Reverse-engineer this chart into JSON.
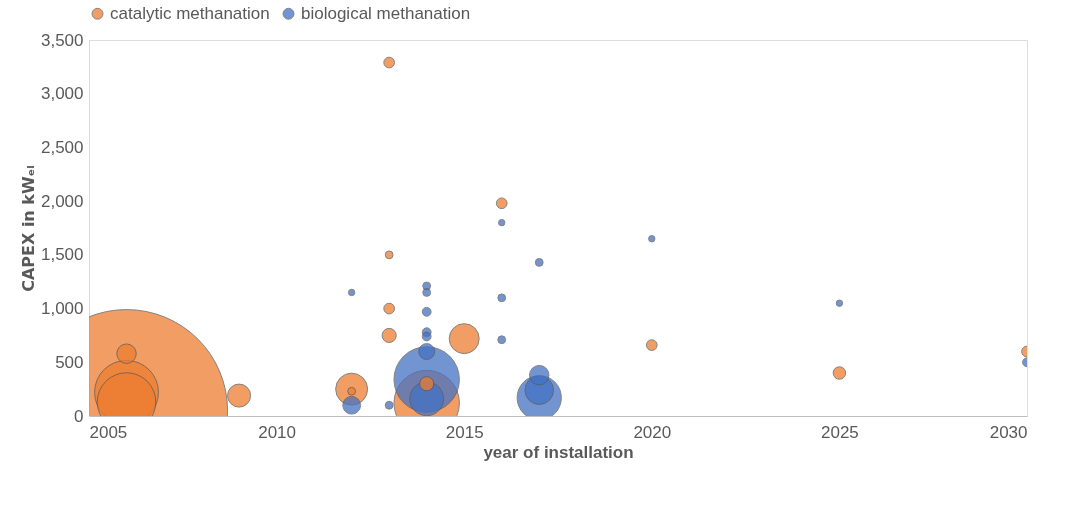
{
  "chart_data": {
    "type": "bubble",
    "xlabel": "year of installation",
    "ylabel": "CAPEX in kWₑₗ",
    "xlim": [
      2005,
      2030
    ],
    "xticks": [
      2005,
      2010,
      2015,
      2020,
      2025,
      2030
    ],
    "ylim": [
      0,
      3500
    ],
    "yticks": [
      0,
      {
        "value": 500,
        "label": "500"
      },
      {
        "value": 1000,
        "label": "1,000"
      },
      {
        "value": 1500,
        "label": "1,500"
      },
      {
        "value": 2000,
        "label": "2,000"
      },
      {
        "value": 2500,
        "label": "2,500"
      },
      {
        "value": 3000,
        "label": "3,000"
      },
      {
        "value": 3500,
        "label": "3,500"
      }
    ],
    "grid": false,
    "legend": "top",
    "series": [
      {
        "name": "catalytic methanation",
        "color": "#ed7d31",
        "x": [
          2006,
          2006,
          2006,
          2006,
          2009,
          2012,
          2012,
          2013,
          2013,
          2013,
          2013,
          2014,
          2014,
          2015,
          2016,
          2020,
          2025,
          2030
        ],
        "values": [
          50,
          580,
          220,
          130,
          190,
          250,
          230,
          3290,
          1500,
          1000,
          750,
          120,
          300,
          720,
          1980,
          660,
          400,
          600
        ],
        "sizes": [
          1,
          0.0093,
          0.1,
          0.084,
          0.013,
          0.025,
          0.0015,
          0.0028,
          0.0015,
          0.0028,
          0.0049,
          0.105,
          0.0049,
          0.022,
          0.0028,
          0.0028,
          0.0038,
          0.0028
        ]
      },
      {
        "name": "biological methanation",
        "color": "#4472c4",
        "x": [
          2012,
          2012,
          2013,
          2014,
          2014,
          2014,
          2014,
          2014,
          2014,
          2014,
          2014,
          2016,
          2016,
          2016,
          2017,
          2017,
          2017,
          2017,
          2020,
          2025,
          2030
        ],
        "values": [
          1150,
          100,
          100,
          1210,
          1150,
          970,
          780,
          740,
          600,
          340,
          160,
          1100,
          710,
          1800,
          1430,
          380,
          240,
          170,
          1650,
          1050,
          500
        ],
        "sizes": [
          0.001,
          0.0077,
          0.0015,
          0.0015,
          0.0015,
          0.0019,
          0.0019,
          0.0019,
          0.0062,
          0.105,
          0.028,
          0.0015,
          0.0015,
          0.001,
          0.0015,
          0.0093,
          0.02,
          0.048,
          0.001,
          0.001,
          0.0019
        ]
      }
    ]
  }
}
